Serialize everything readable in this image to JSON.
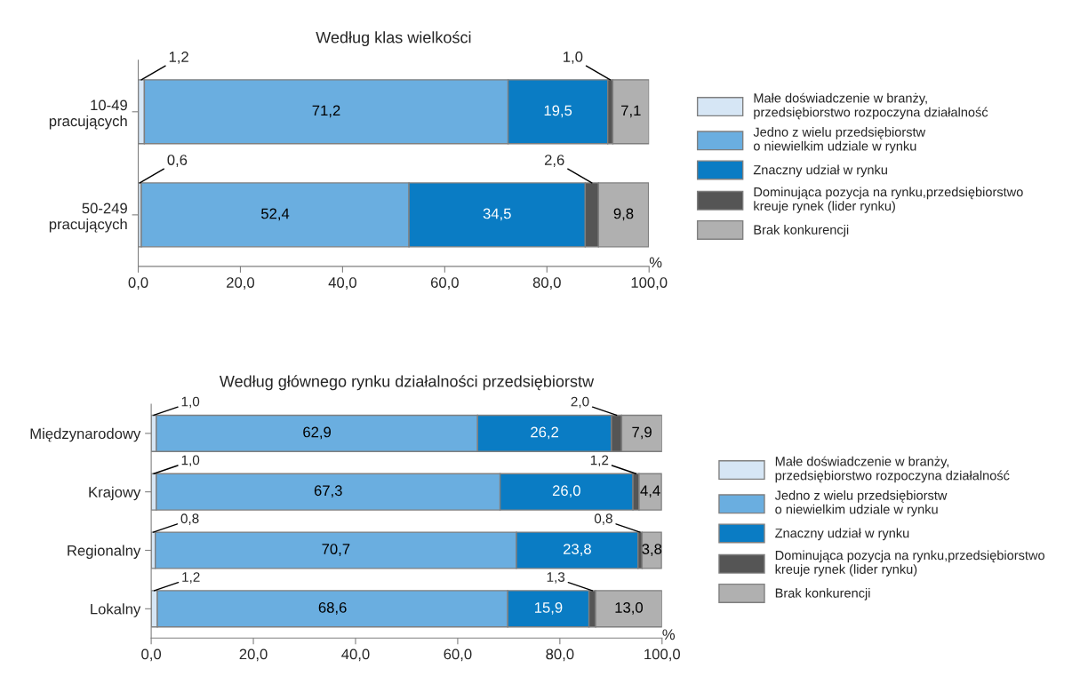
{
  "chart_data": [
    {
      "type": "bar",
      "orientation": "horizontal",
      "stacked": true,
      "title": "Według klas wielkości",
      "xlabel": "%",
      "categories": [
        "10-49\npracujących",
        "50-249\npracujących"
      ],
      "series": [
        {
          "name": "Małe doświadczenie w branży,\nprzedsiębiorstwo rozpoczyna działalność",
          "color": "#d6e6f5",
          "values": [
            1.2,
            0.6
          ],
          "value_labels": [
            "1,2",
            "0,6"
          ]
        },
        {
          "name": "Jedno z wielu przedsiębiorstw\no niewielkim udziale w rynku",
          "color": "#6aaee0",
          "values": [
            71.2,
            52.4
          ],
          "value_labels": [
            "71,2",
            "52,4"
          ]
        },
        {
          "name": "Znaczny udział w rynku",
          "color": "#0a7cc4",
          "values": [
            19.5,
            34.5
          ],
          "value_labels": [
            "19,5",
            "34,5"
          ]
        },
        {
          "name": "Dominująca pozycja na rynku,przedsiębiorstwo\nkreuje rynek (lider rynku)",
          "color": "#555555",
          "values": [
            1.0,
            2.6
          ],
          "value_labels": [
            "1,0",
            "2,6"
          ]
        },
        {
          "name": "Brak konkurencji",
          "color": "#b0b0b0",
          "values": [
            7.1,
            9.8
          ],
          "value_labels": [
            "7,1",
            "9,8"
          ]
        }
      ],
      "xlim": [
        0,
        100
      ],
      "xticks": [
        {
          "value": 0,
          "label": "0,0"
        },
        {
          "value": 20,
          "label": "20,0"
        },
        {
          "value": 40,
          "label": "40,0"
        },
        {
          "value": 60,
          "label": "60,0"
        },
        {
          "value": 80,
          "label": "80,0"
        },
        {
          "value": 100,
          "label": "100,0"
        }
      ],
      "grid": false,
      "legend": "right"
    },
    {
      "type": "bar",
      "orientation": "horizontal",
      "stacked": true,
      "title": "Według głównego rynku działalności przedsiębiorstw",
      "xlabel": "%",
      "categories": [
        "Międzynarodowy",
        "Krajowy",
        "Regionalny",
        "Lokalny"
      ],
      "series": [
        {
          "name": "Małe doświadczenie w branży,\nprzedsiębiorstwo rozpoczyna działalność",
          "color": "#d6e6f5",
          "values": [
            1.0,
            1.0,
            0.8,
            1.2
          ],
          "value_labels": [
            "1,0",
            "1,0",
            "0,8",
            "1,2"
          ]
        },
        {
          "name": "Jedno z wielu przedsiębiorstw\no niewielkim udziale w rynku",
          "color": "#6aaee0",
          "values": [
            62.9,
            67.3,
            70.7,
            68.6
          ],
          "value_labels": [
            "62,9",
            "67,3",
            "70,7",
            "68,6"
          ]
        },
        {
          "name": "Znaczny udział w rynku",
          "color": "#0a7cc4",
          "values": [
            26.2,
            26.0,
            23.8,
            15.9
          ],
          "value_labels": [
            "26,2",
            "26,0",
            "23,8",
            "15,9"
          ]
        },
        {
          "name": "Dominująca pozycja na rynku,przedsiębiorstwo\nkreuje rynek (lider rynku)",
          "color": "#555555",
          "values": [
            2.0,
            1.2,
            0.8,
            1.3
          ],
          "value_labels": [
            "2,0",
            "1,2",
            "0,8",
            "1,3"
          ]
        },
        {
          "name": "Brak konkurencji",
          "color": "#b0b0b0",
          "values": [
            7.9,
            4.4,
            3.8,
            13.0
          ],
          "value_labels": [
            "7,9",
            "4,4",
            "3,8",
            "13,0"
          ]
        }
      ],
      "xlim": [
        0,
        100
      ],
      "xticks": [
        {
          "value": 0,
          "label": "0,0"
        },
        {
          "value": 20,
          "label": "20,0"
        },
        {
          "value": 40,
          "label": "40,0"
        },
        {
          "value": 60,
          "label": "60,0"
        },
        {
          "value": 80,
          "label": "80,0"
        },
        {
          "value": 100,
          "label": "100,0"
        }
      ],
      "grid": false,
      "legend": "right"
    }
  ]
}
